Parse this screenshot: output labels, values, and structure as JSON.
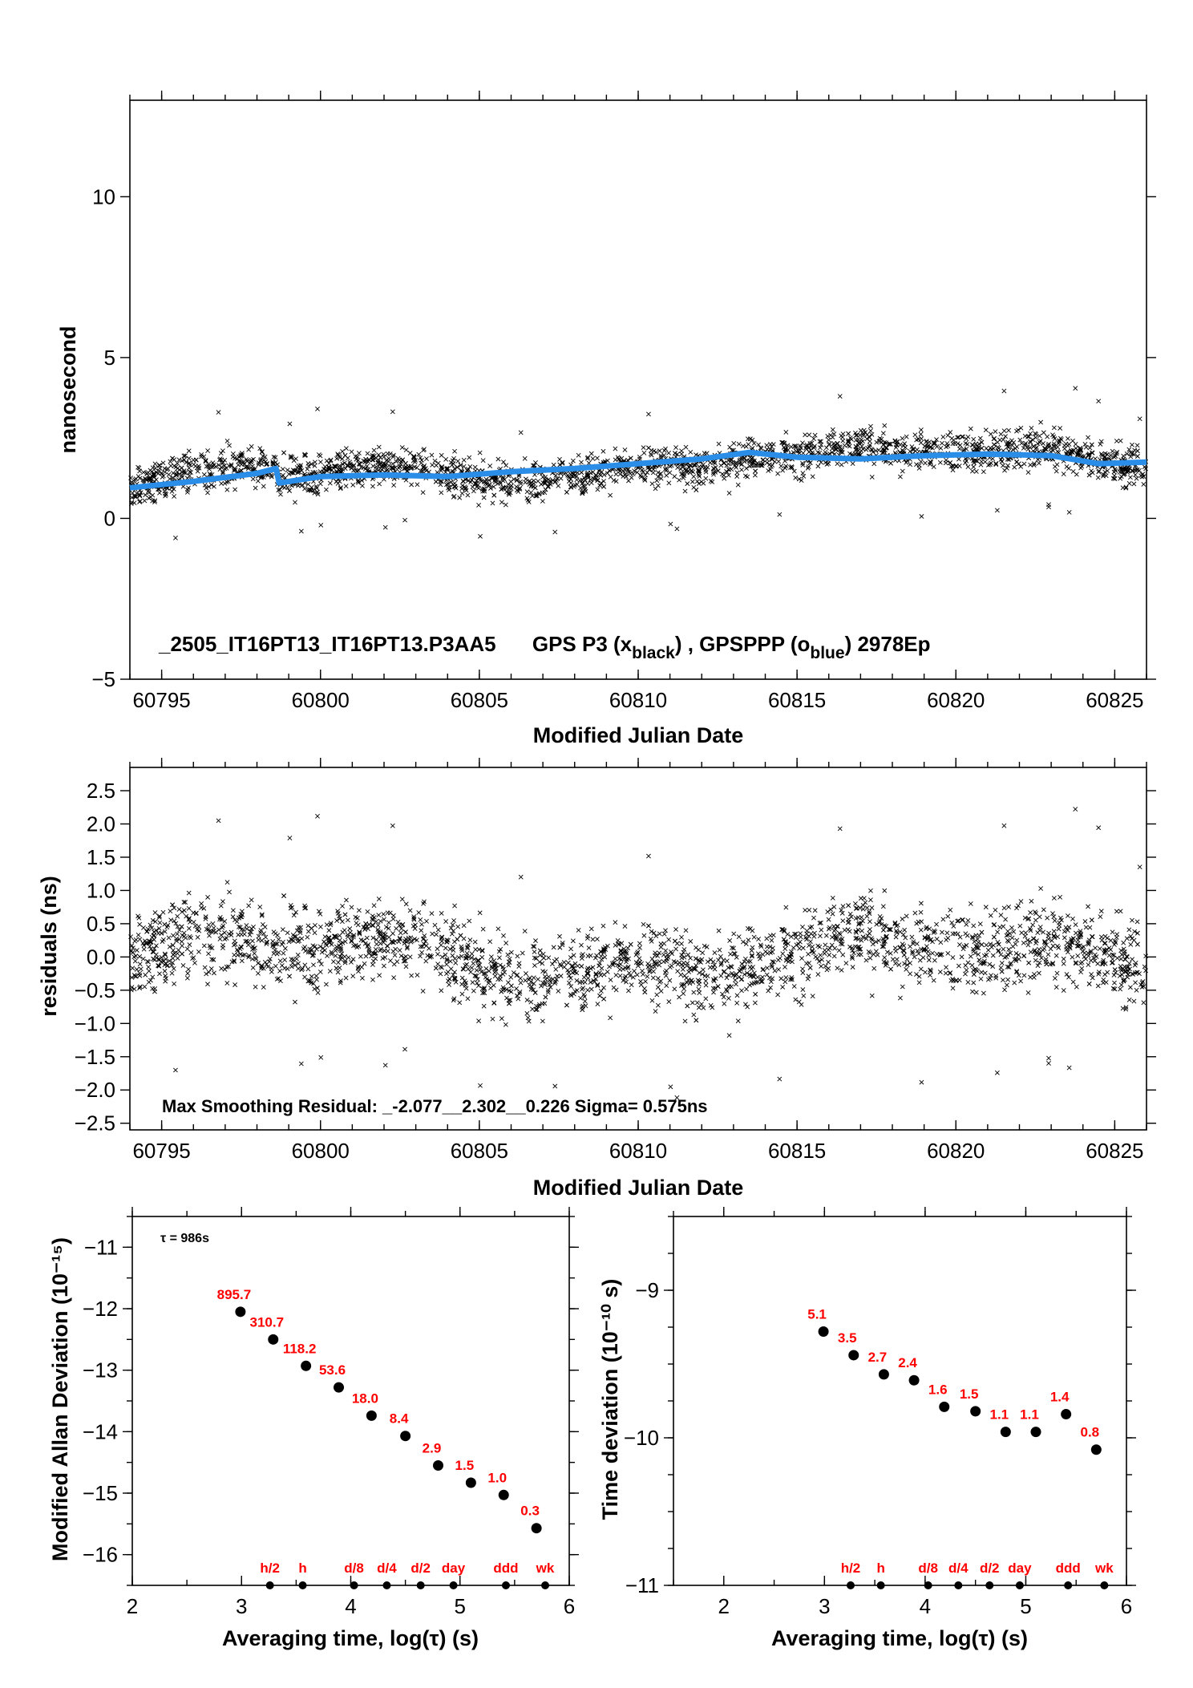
{
  "colors": {
    "blue": "#2a8de8",
    "red": "#ff0000",
    "black": "#000000"
  },
  "chart_data": [
    {
      "type": "scatter",
      "xlabel": "Modified Julian Date",
      "ylabel": "nanosecond",
      "xlim": [
        60794,
        60826
      ],
      "ylim": [
        -5,
        13
      ],
      "xticks": [
        60795,
        60800,
        60805,
        60810,
        60815,
        60820,
        60825
      ],
      "yticks": [
        -5,
        0,
        5,
        10
      ],
      "caption": {
        "part1": "_2505_IT16PT13_IT16PT13.P3AA5",
        "part2": "GPS P3 (x",
        "sub1": "black",
        "part3": ") ,  GPSPPP (o",
        "sub2": "blue",
        "part4": ")  2978Ep"
      },
      "series": [
        {
          "name": "GPS P3",
          "marker": "x",
          "color": "black",
          "note": "approx. 3000 dense points scattered around the smooth trend with ~0.6 ns spread"
        },
        {
          "name": "GPSPPP",
          "marker": "o",
          "color": "blue",
          "x": [
            60794,
            60796,
            60798,
            60798.6,
            60798.7,
            60800,
            60802,
            60804,
            60806,
            60808,
            60810,
            60812,
            60813.5,
            60815,
            60817,
            60819,
            60821,
            60823,
            60824.5,
            60826
          ],
          "y": [
            0.95,
            1.15,
            1.4,
            1.55,
            1.1,
            1.3,
            1.35,
            1.3,
            1.45,
            1.55,
            1.7,
            1.85,
            2.05,
            1.9,
            1.85,
            1.95,
            2.0,
            1.95,
            1.7,
            1.75
          ]
        }
      ]
    },
    {
      "type": "scatter",
      "xlabel": "Modified Julian Date",
      "ylabel": "residuals (ns)",
      "xlim": [
        60794,
        60826
      ],
      "ylim": [
        -2.6,
        2.85
      ],
      "xticks": [
        60795,
        60800,
        60805,
        60810,
        60815,
        60820,
        60825
      ],
      "yticks": [
        -2.5,
        -2.0,
        -1.5,
        -1.0,
        -0.5,
        0.0,
        0.5,
        1.0,
        1.5,
        2.0,
        2.5
      ],
      "ytick_labels": [
        "−2.5",
        "−2.0",
        "−1.5",
        "−1.0",
        "−0.5",
        "0.0",
        "0.5",
        "1.0",
        "1.5",
        "2.0",
        "2.5"
      ],
      "annotation": "Max Smoothing Residual: _-2.077__2.302__0.226  Sigma= 0.575ns",
      "series": [
        {
          "name": "residuals",
          "marker": "x",
          "color": "black",
          "note": "approx. 3000 points, sigma 0.575 ns, min -2.077, max 2.302"
        }
      ]
    },
    {
      "type": "scatter",
      "xlabel": "Averaging time, log(τ) (s)",
      "ylabel": "Modified Allan Deviation (10⁻¹⁵)",
      "xlim": [
        2,
        6
      ],
      "ylim": [
        -16.5,
        -10.5
      ],
      "xticks": [
        2,
        3,
        4,
        5,
        6
      ],
      "yticks": [
        -16,
        -15,
        -14,
        -13,
        -12,
        -11
      ],
      "ytick_labels": [
        "−16",
        "−15",
        "−14",
        "−13",
        "−12",
        "−11"
      ],
      "annotation": "τ = 986s",
      "points": [
        {
          "x": 2.99,
          "y": -12.05,
          "label": "895.7"
        },
        {
          "x": 3.29,
          "y": -12.5,
          "label": "310.7"
        },
        {
          "x": 3.59,
          "y": -12.93,
          "label": "118.2"
        },
        {
          "x": 3.89,
          "y": -13.28,
          "label": "53.6"
        },
        {
          "x": 4.19,
          "y": -13.74,
          "label": "18.0"
        },
        {
          "x": 4.5,
          "y": -14.07,
          "label": "8.4"
        },
        {
          "x": 4.8,
          "y": -14.55,
          "label": "2.9"
        },
        {
          "x": 5.1,
          "y": -14.83,
          "label": "1.5"
        },
        {
          "x": 5.4,
          "y": -15.03,
          "label": "1.0"
        },
        {
          "x": 5.7,
          "y": -15.57,
          "label": "0.3"
        }
      ],
      "time_markers": [
        {
          "x": 3.26,
          "label": "h/2"
        },
        {
          "x": 3.56,
          "label": "h"
        },
        {
          "x": 4.03,
          "label": "d/8"
        },
        {
          "x": 4.33,
          "label": "d/4"
        },
        {
          "x": 4.64,
          "label": "d/2"
        },
        {
          "x": 4.94,
          "label": "day"
        },
        {
          "x": 5.42,
          "label": "ddd"
        },
        {
          "x": 5.78,
          "label": "wk"
        }
      ]
    },
    {
      "type": "scatter",
      "xlabel": "Averaging time, log(τ) (s)",
      "ylabel": "Time deviation (10⁻¹⁰ s)",
      "xlim": [
        1.5,
        6
      ],
      "ylim": [
        -11,
        -8.5
      ],
      "xticks": [
        2,
        3,
        4,
        5,
        6
      ],
      "yticks": [
        -11,
        -10,
        -9
      ],
      "ytick_labels": [
        "−11",
        "−10",
        "−9"
      ],
      "points": [
        {
          "x": 2.99,
          "y": -9.28,
          "label": "5.1"
        },
        {
          "x": 3.29,
          "y": -9.44,
          "label": "3.5"
        },
        {
          "x": 3.59,
          "y": -9.57,
          "label": "2.7"
        },
        {
          "x": 3.89,
          "y": -9.61,
          "label": "2.4"
        },
        {
          "x": 4.19,
          "y": -9.79,
          "label": "1.6"
        },
        {
          "x": 4.5,
          "y": -9.82,
          "label": "1.5"
        },
        {
          "x": 4.8,
          "y": -9.96,
          "label": "1.1"
        },
        {
          "x": 5.1,
          "y": -9.96,
          "label": "1.1"
        },
        {
          "x": 5.4,
          "y": -9.84,
          "label": "1.4"
        },
        {
          "x": 5.7,
          "y": -10.08,
          "label": "0.8"
        }
      ],
      "time_markers": [
        {
          "x": 3.26,
          "label": "h/2"
        },
        {
          "x": 3.56,
          "label": "h"
        },
        {
          "x": 4.03,
          "label": "d/8"
        },
        {
          "x": 4.33,
          "label": "d/4"
        },
        {
          "x": 4.64,
          "label": "d/2"
        },
        {
          "x": 4.94,
          "label": "day"
        },
        {
          "x": 5.42,
          "label": "ddd"
        },
        {
          "x": 5.78,
          "label": "wk"
        }
      ]
    }
  ]
}
